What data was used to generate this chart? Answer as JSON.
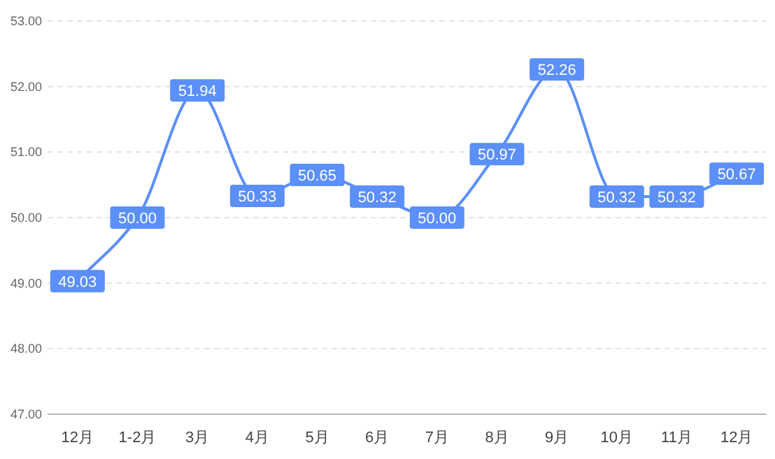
{
  "chart_data": {
    "type": "line",
    "categories": [
      "12月",
      "1-2月",
      "3月",
      "4月",
      "5月",
      "6月",
      "7月",
      "8月",
      "9月",
      "10月",
      "11月",
      "12月"
    ],
    "values": [
      49.03,
      50.0,
      51.94,
      50.33,
      50.65,
      50.32,
      50.0,
      50.97,
      52.26,
      50.32,
      50.32,
      50.67
    ],
    "value_labels": [
      "49.03",
      "50.00",
      "51.94",
      "50.33",
      "50.65",
      "50.32",
      "50.00",
      "50.97",
      "52.26",
      "50.32",
      "50.32",
      "50.67"
    ],
    "color": "#5b8ff9",
    "ylim": [
      47,
      53
    ],
    "yticks": [
      {
        "value": 47,
        "label": "47.00"
      },
      {
        "value": 48,
        "label": "48.00"
      },
      {
        "value": 49,
        "label": "49.00"
      },
      {
        "value": 50,
        "label": "50.00"
      },
      {
        "value": 51,
        "label": "51.00"
      },
      {
        "value": 52,
        "label": "52.00"
      },
      {
        "value": 53,
        "label": "53.00"
      }
    ],
    "grid": "y",
    "line_style": "solid",
    "marker": "square"
  }
}
